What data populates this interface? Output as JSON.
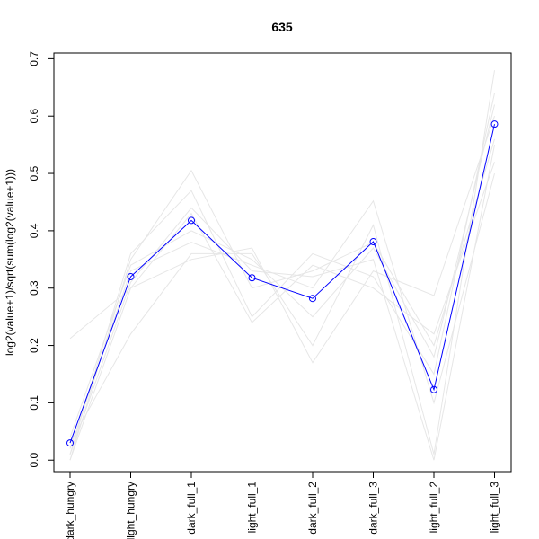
{
  "chart_data": {
    "type": "line",
    "title": "635",
    "xlabel": "",
    "ylabel": "log2(value+1)/sqrt(sum(log2(value+1)))",
    "categories": [
      "dark_hungry",
      "light_hungry",
      "dark_full_1",
      "light_full_1",
      "dark_full_2",
      "dark_full_3",
      "light_full_2",
      "light_full_3"
    ],
    "ylim": [
      -0.02,
      0.71
    ],
    "yticks": [
      0.0,
      0.1,
      0.2,
      0.3,
      0.4,
      0.5,
      0.6,
      0.7
    ],
    "ytick_labels": [
      "0.0",
      "0.1",
      "0.2",
      "0.3",
      "0.4",
      "0.5",
      "0.6",
      "0.7"
    ],
    "grid": false,
    "highlight": {
      "color": "#0000ff",
      "values": [
        0.03,
        0.32,
        0.418,
        0.318,
        0.282,
        0.381,
        0.123,
        0.586
      ]
    },
    "background_series": {
      "color": "#e6e6e6",
      "series": [
        [
          0.212,
          0.3,
          0.35,
          0.37,
          0.17,
          0.33,
          0.287,
          0.6
        ],
        [
          0.0,
          0.35,
          0.505,
          0.3,
          0.33,
          0.38,
          0.2,
          0.56
        ],
        [
          0.01,
          0.36,
          0.47,
          0.25,
          0.36,
          0.32,
          0.15,
          0.64
        ],
        [
          0.02,
          0.33,
          0.38,
          0.34,
          0.3,
          0.452,
          0.1,
          0.5
        ],
        [
          0.03,
          0.22,
          0.36,
          0.36,
          0.2,
          0.41,
          0.01,
          0.68
        ],
        [
          0.0,
          0.3,
          0.43,
          0.24,
          0.34,
          0.3,
          0.22,
          0.52
        ],
        [
          0.04,
          0.34,
          0.4,
          0.35,
          0.25,
          0.37,
          0.18,
          0.62
        ],
        [
          0.01,
          0.31,
          0.44,
          0.33,
          0.32,
          0.35,
          0.0,
          0.55
        ]
      ]
    }
  }
}
